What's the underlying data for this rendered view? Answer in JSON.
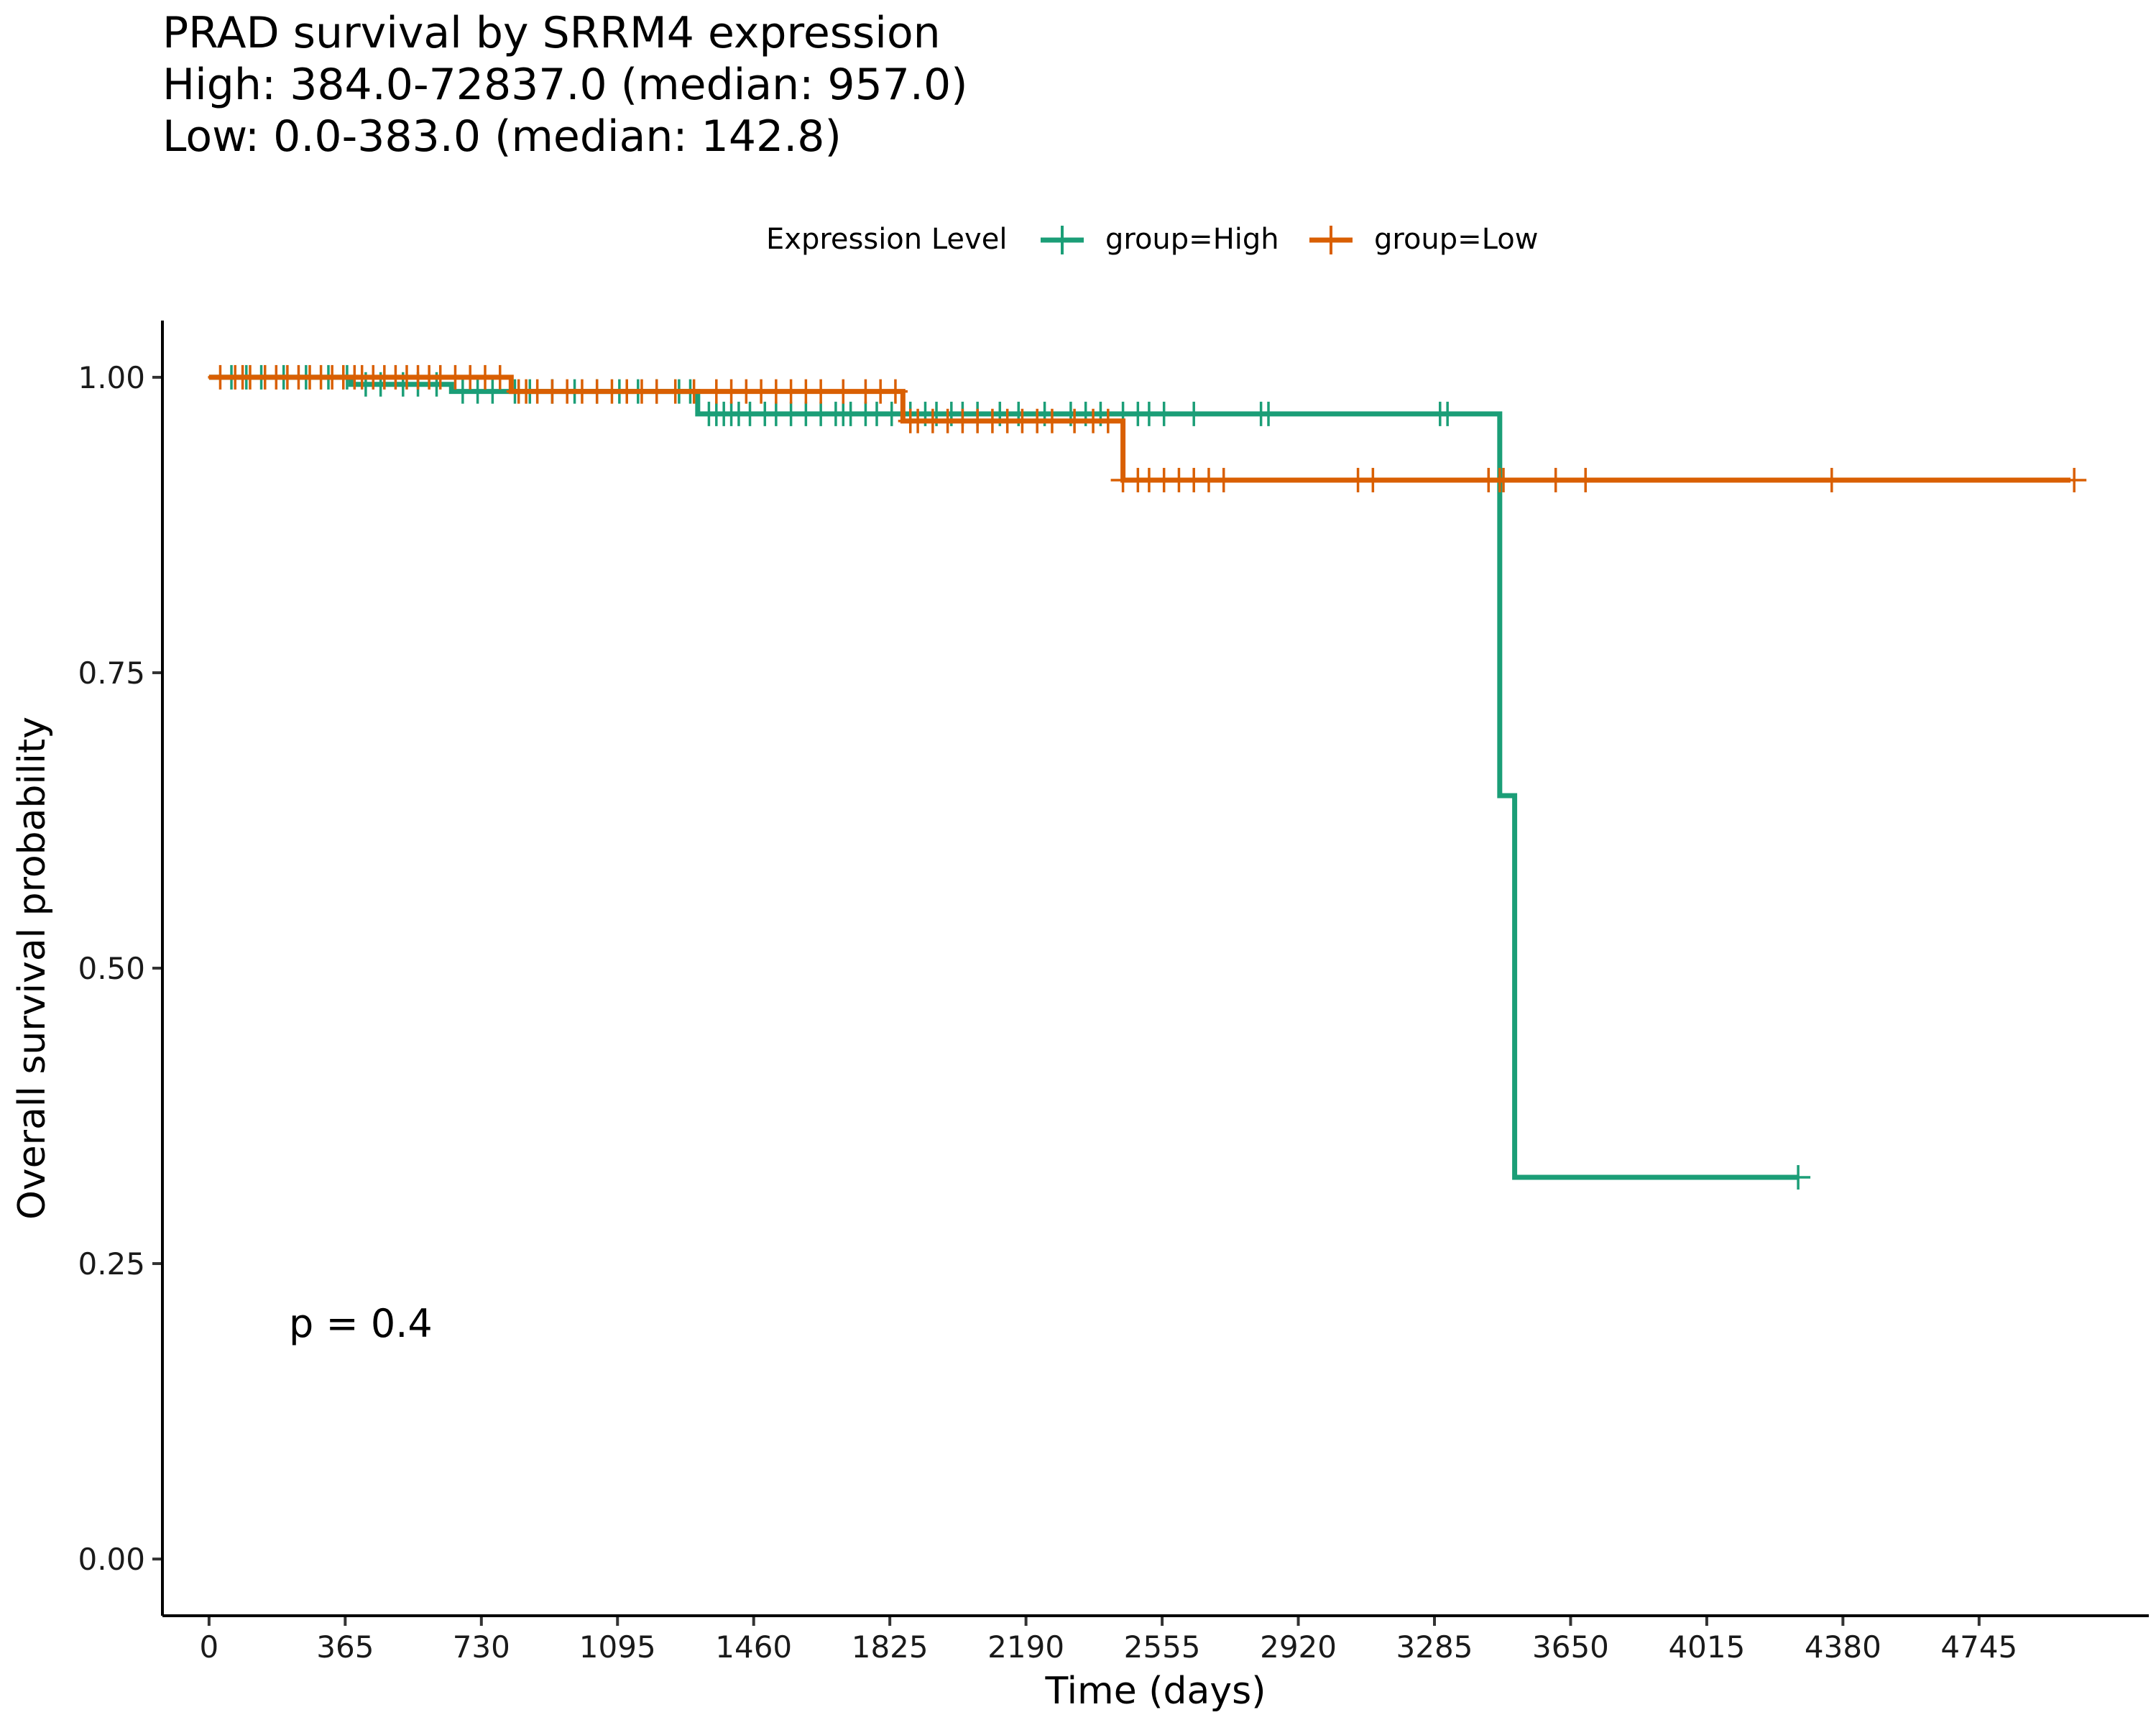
{
  "chart_data": {
    "type": "line",
    "title_lines": [
      "PRAD survival by SRRM4 expression",
      "High: 384.0-72837.0 (median: 957.0)",
      "Low: 0.0-383.0 (median: 142.8)"
    ],
    "xlabel": "Time (days)",
    "ylabel": "Overall survival probability",
    "x_ticks": [
      "0",
      "365",
      "730",
      "1095",
      "1460",
      "1825",
      "2190",
      "2555",
      "2920",
      "3285",
      "3650",
      "4015",
      "4380",
      "4745"
    ],
    "y_ticks": [
      "0.00",
      "0.25",
      "0.50",
      "0.75",
      "1.00"
    ],
    "xlim": [
      -125,
      5200
    ],
    "ylim": [
      -0.048,
      1.048
    ],
    "legend": {
      "title": "Expression Level",
      "position": "top",
      "entries": [
        "group=High",
        "group=Low"
      ]
    },
    "annotation": "p = 0.4",
    "series": [
      {
        "name": "group=High",
        "color": "#1b9e77",
        "steps": [
          [
            0,
            1.0
          ],
          [
            380,
            0.994
          ],
          [
            650,
            0.988
          ],
          [
            1310,
            0.969
          ],
          [
            3460,
            0.646
          ],
          [
            3500,
            0.323
          ],
          [
            4260,
            0.323
          ]
        ],
        "censor_x": [
          60,
          100,
          140,
          200,
          260,
          320,
          370,
          420,
          460,
          520,
          560,
          610,
          680,
          720,
          760,
          820,
          860,
          920,
          980,
          1040,
          1100,
          1150,
          1200,
          1260,
          1290,
          1340,
          1360,
          1380,
          1400,
          1420,
          1450,
          1490,
          1520,
          1560,
          1600,
          1640,
          1680,
          1700,
          1720,
          1760,
          1790,
          1830,
          1880,
          1920,
          1950,
          1990,
          2020,
          2060,
          2120,
          2170,
          2240,
          2310,
          2350,
          2390,
          2450,
          2490,
          2520,
          2560,
          2640,
          2820,
          2840,
          3300,
          3320,
          4260
        ]
      },
      {
        "name": "group=Low",
        "color": "#d95f02",
        "steps": [
          [
            0,
            1.0
          ],
          [
            810,
            0.988
          ],
          [
            1860,
            0.963
          ],
          [
            2450,
            0.913
          ],
          [
            4990,
            0.913
          ]
        ],
        "censor_x": [
          30,
          70,
          90,
          110,
          150,
          180,
          210,
          240,
          270,
          300,
          330,
          360,
          390,
          410,
          440,
          470,
          500,
          530,
          560,
          590,
          620,
          660,
          700,
          740,
          780,
          830,
          850,
          880,
          920,
          960,
          1000,
          1040,
          1080,
          1120,
          1160,
          1200,
          1250,
          1300,
          1360,
          1400,
          1440,
          1480,
          1520,
          1560,
          1600,
          1640,
          1700,
          1760,
          1800,
          1840,
          1880,
          1900,
          1940,
          1980,
          2020,
          2060,
          2100,
          2140,
          2180,
          2220,
          2260,
          2320,
          2370,
          2410,
          2450,
          2490,
          2520,
          2560,
          2600,
          2640,
          2680,
          2720,
          3080,
          3120,
          3430,
          3460,
          3470,
          3610,
          3690,
          4350,
          5000
        ]
      }
    ]
  }
}
